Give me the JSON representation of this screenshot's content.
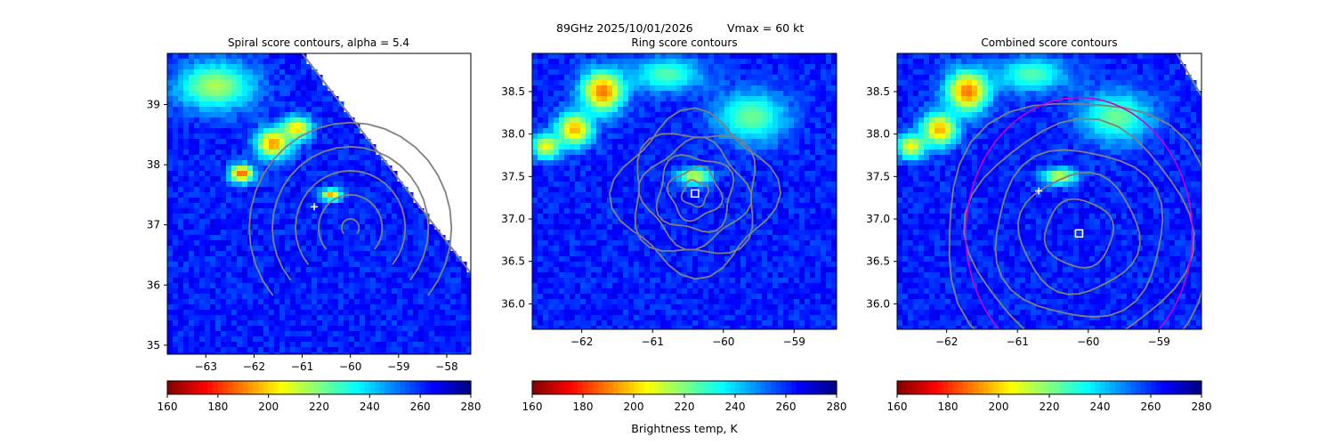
{
  "figure": {
    "suptitle_left": "89GHz  2025/10/01/2026",
    "suptitle_right": "Vmax = 60 kt",
    "colorbar_label": "Brightness temp, K"
  },
  "colormap": {
    "name": "jet_r",
    "vmin": 160,
    "vmax": 280,
    "stops": [
      "#800000",
      "#ff0000",
      "#ff8000",
      "#ffff00",
      "#80ff80",
      "#00ffff",
      "#0080ff",
      "#0000ff",
      "#000080"
    ],
    "contour_color": "#808080",
    "ring_color": "#cc00cc",
    "marker_color": "#ffffff"
  },
  "colorbar_ticks": [
    "160",
    "180",
    "200",
    "220",
    "240",
    "260",
    "280"
  ],
  "chart_data": [
    {
      "type": "heatmap",
      "title": "Spiral score contours, alpha =  5.4",
      "xlim": [
        -63.8,
        -57.5
      ],
      "ylim": [
        34.85,
        39.85
      ],
      "xticks": [
        -63,
        -62,
        -61,
        -60,
        -59,
        -58
      ],
      "yticks": [
        35,
        36,
        37,
        38,
        39
      ],
      "xtick_labels": [
        "−63",
        "−62",
        "−61",
        "−60",
        "−59",
        "−58"
      ],
      "ytick_labels": [
        "35",
        "36",
        "37",
        "38",
        "39"
      ],
      "swath_edge": [
        [
          -61.0,
          39.85
        ],
        [
          -57.5,
          36.2
        ]
      ],
      "center_plus": [
        -60.75,
        37.3
      ],
      "center_square": null,
      "ring": null,
      "contours": "spiral",
      "background_Tb": 262,
      "features": [
        {
          "x": -61.6,
          "y": 38.35,
          "sx": 0.35,
          "sy": 0.25,
          "min_Tb": 192
        },
        {
          "x": -61.1,
          "y": 38.6,
          "sx": 0.3,
          "sy": 0.2,
          "min_Tb": 200
        },
        {
          "x": -62.25,
          "y": 37.85,
          "sx": 0.25,
          "sy": 0.15,
          "min_Tb": 186
        },
        {
          "x": -60.4,
          "y": 37.5,
          "sx": 0.2,
          "sy": 0.1,
          "min_Tb": 195
        },
        {
          "x": -62.8,
          "y": 39.3,
          "sx": 0.8,
          "sy": 0.4,
          "min_Tb": 215
        }
      ]
    },
    {
      "type": "heatmap",
      "title": "Ring score contours",
      "xlim": [
        -62.7,
        -58.4
      ],
      "ylim": [
        35.7,
        38.95
      ],
      "xticks": [
        -62,
        -61,
        -60,
        -59
      ],
      "yticks": [
        36.0,
        36.5,
        37.0,
        37.5,
        38.0,
        38.5
      ],
      "xtick_labels": [
        "−62",
        "−61",
        "−60",
        "−59"
      ],
      "ytick_labels": [
        "36.0",
        "36.5",
        "37.0",
        "37.5",
        "38.0",
        "38.5"
      ],
      "swath_edge": null,
      "center_plus": null,
      "center_square": [
        -60.4,
        37.3
      ],
      "ring": null,
      "contours": "ring",
      "background_Tb": 262,
      "features": [
        {
          "x": -61.7,
          "y": 38.5,
          "sx": 0.3,
          "sy": 0.25,
          "min_Tb": 188
        },
        {
          "x": -62.1,
          "y": 38.05,
          "sx": 0.25,
          "sy": 0.2,
          "min_Tb": 195
        },
        {
          "x": -62.5,
          "y": 37.85,
          "sx": 0.2,
          "sy": 0.15,
          "min_Tb": 205
        },
        {
          "x": -60.4,
          "y": 37.5,
          "sx": 0.25,
          "sy": 0.1,
          "min_Tb": 210
        },
        {
          "x": -59.6,
          "y": 38.2,
          "sx": 0.5,
          "sy": 0.3,
          "min_Tb": 222
        },
        {
          "x": -60.8,
          "y": 38.7,
          "sx": 0.5,
          "sy": 0.2,
          "min_Tb": 225
        }
      ]
    },
    {
      "type": "heatmap",
      "title": "Combined score contours",
      "xlim": [
        -62.7,
        -58.4
      ],
      "ylim": [
        35.7,
        38.95
      ],
      "xticks": [
        -62,
        -61,
        -60,
        -59
      ],
      "yticks": [
        36.0,
        36.5,
        37.0,
        37.5,
        38.0,
        38.5
      ],
      "xtick_labels": [
        "−62",
        "−61",
        "−60",
        "−59"
      ],
      "ytick_labels": [
        "36.0",
        "36.5",
        "37.0",
        "37.5",
        "38.0",
        "38.5"
      ],
      "swath_edge": [
        [
          -58.75,
          38.95
        ],
        [
          -58.4,
          38.45
        ]
      ],
      "center_plus": [
        -60.7,
        37.33
      ],
      "center_square": [
        -60.13,
        36.83
      ],
      "ring": {
        "cx": -60.13,
        "cy": 36.83,
        "r": 1.6
      },
      "contours": "combined",
      "background_Tb": 262,
      "features": [
        {
          "x": -61.7,
          "y": 38.5,
          "sx": 0.3,
          "sy": 0.25,
          "min_Tb": 188
        },
        {
          "x": -62.1,
          "y": 38.05,
          "sx": 0.25,
          "sy": 0.2,
          "min_Tb": 195
        },
        {
          "x": -62.5,
          "y": 37.85,
          "sx": 0.2,
          "sy": 0.15,
          "min_Tb": 205
        },
        {
          "x": -60.4,
          "y": 37.5,
          "sx": 0.25,
          "sy": 0.1,
          "min_Tb": 210
        },
        {
          "x": -59.6,
          "y": 38.2,
          "sx": 0.5,
          "sy": 0.3,
          "min_Tb": 222
        },
        {
          "x": -60.8,
          "y": 38.7,
          "sx": 0.5,
          "sy": 0.2,
          "min_Tb": 225
        }
      ]
    }
  ]
}
